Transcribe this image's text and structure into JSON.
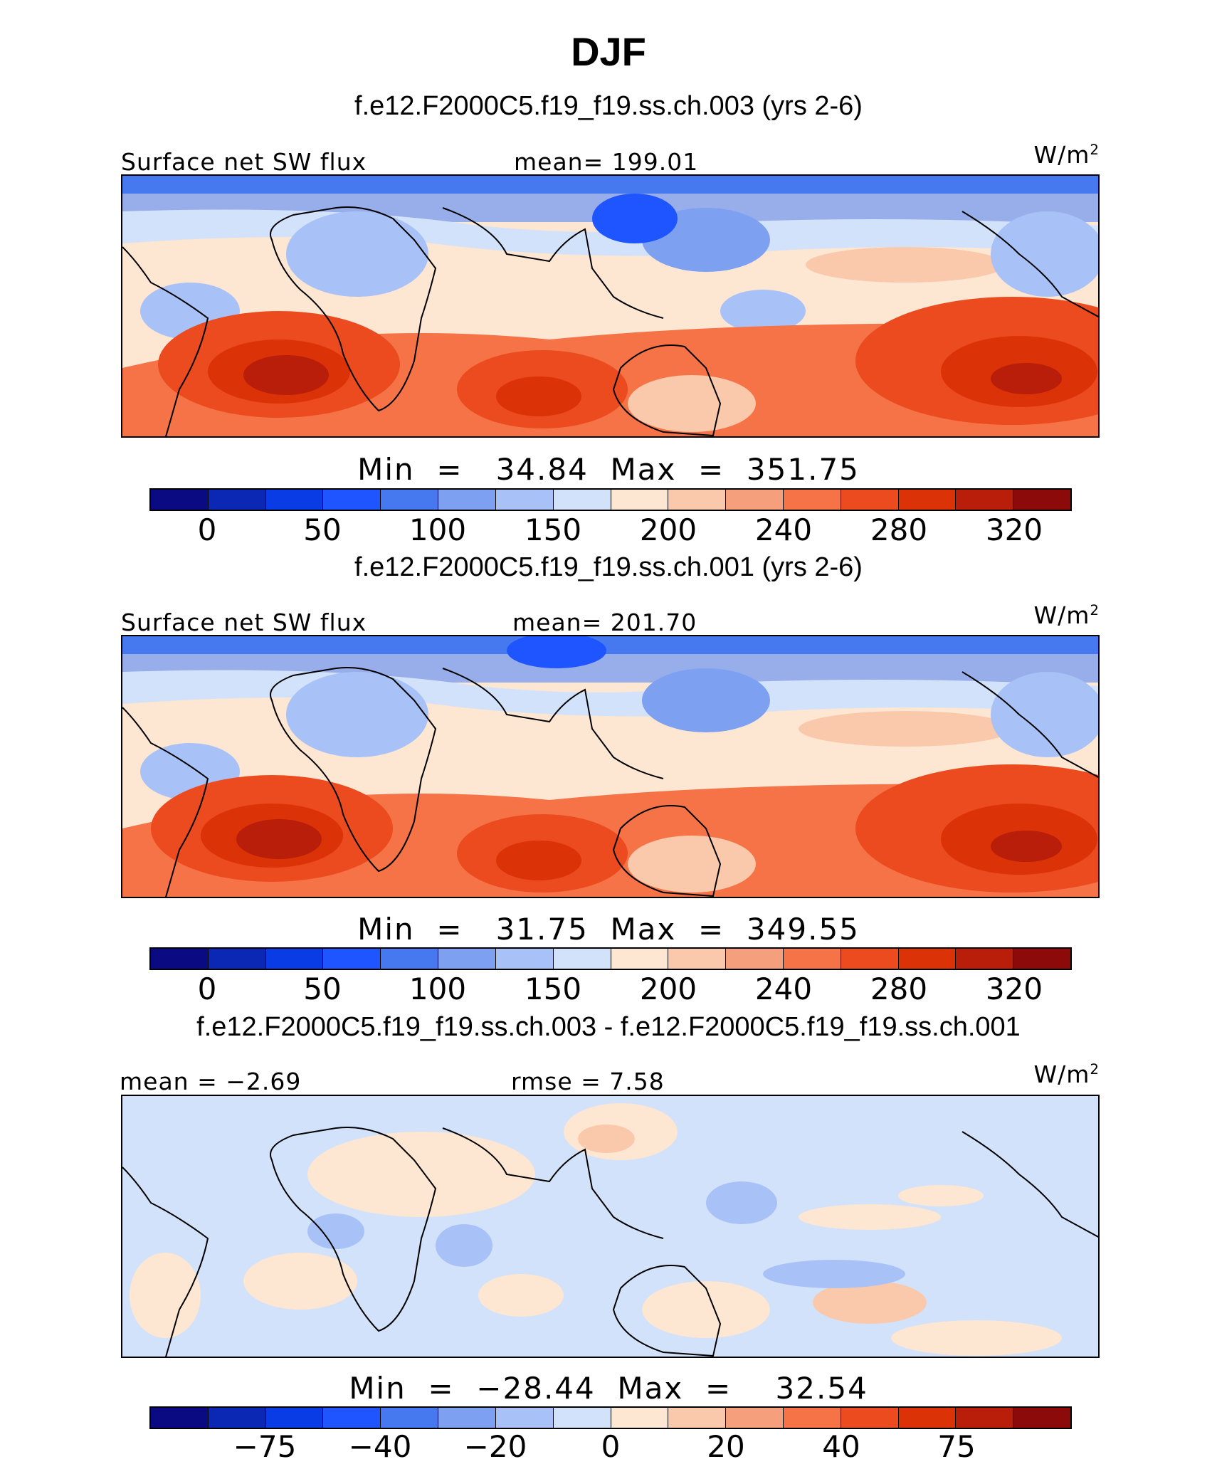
{
  "title": "DJF",
  "colors": {
    "cmap_abs": [
      "#0a0a82",
      "#0a28b4",
      "#0a3ce6",
      "#1e55ff",
      "#4678f0",
      "#7ea0f0",
      "#a8c2f8",
      "#d2e2fa",
      "#fde6d2",
      "#fac8aa",
      "#f59f7d",
      "#f57346",
      "#eb4b1e",
      "#dc3208",
      "#b91e0a",
      "#8c0a0a"
    ],
    "land_outline": "#000000"
  },
  "panels": [
    {
      "case_title": "f.e12.F2000C5.f19_f19.ss.ch.003 (yrs 2-6)",
      "left_label": "Surface net SW flux",
      "center_label": "mean=  199.01",
      "units": "W/m",
      "units_sup": "2",
      "minmax": "Min  =   34.84  Max  =  351.75",
      "colorbar_ticks": [
        "0",
        "50",
        "100",
        "150",
        "200",
        "240",
        "280",
        "320"
      ],
      "field": "ctl"
    },
    {
      "case_title": "f.e12.F2000C5.f19_f19.ss.ch.001 (yrs 2-6)",
      "left_label": "Surface net SW flux",
      "center_label": "mean=  201.70",
      "units": "W/m",
      "units_sup": "2",
      "minmax": "Min  =   31.75  Max  =  349.55",
      "colorbar_ticks": [
        "0",
        "50",
        "100",
        "150",
        "200",
        "240",
        "280",
        "320"
      ],
      "field": "ctl"
    },
    {
      "case_title": "f.e12.F2000C5.f19_f19.ss.ch.003 - f.e12.F2000C5.f19_f19.ss.ch.001",
      "left_label": "mean  =   −2.69",
      "center_label": "rmse  =     7.58",
      "units": "W/m",
      "units_sup": "2",
      "minmax": "Min  =  −28.44  Max  =    32.54",
      "colorbar_ticks": [
        "−75",
        "−40",
        "−20",
        "0",
        "20",
        "40",
        "75"
      ],
      "field": "diff"
    }
  ]
}
